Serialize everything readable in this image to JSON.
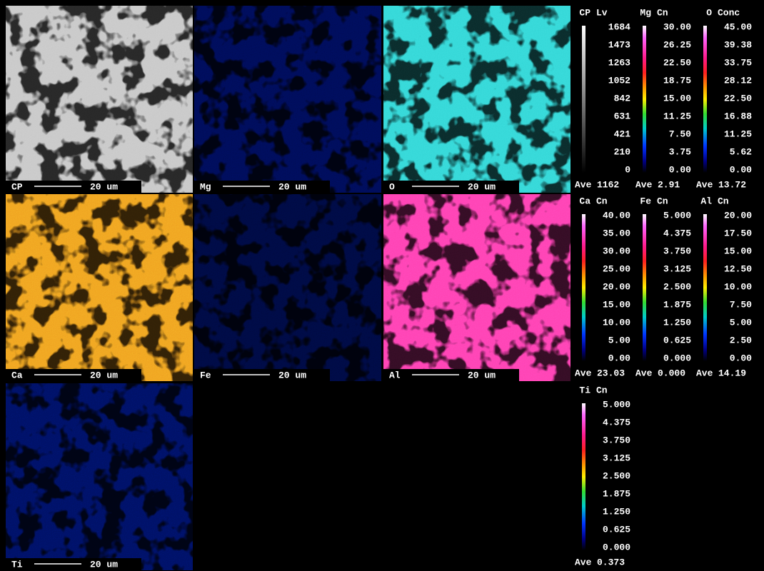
{
  "maps": [
    {
      "element": "CP",
      "scale": "20 um"
    },
    {
      "element": "Mg",
      "scale": "20 um"
    },
    {
      "element": "O",
      "scale": "20 um"
    },
    {
      "element": "Ca",
      "scale": "20 um"
    },
    {
      "element": "Fe",
      "scale": "20 um"
    },
    {
      "element": "Al",
      "scale": "20 um"
    },
    {
      "element": "Ti",
      "scale": "20 um"
    }
  ],
  "legends": [
    {
      "element": "CP",
      "unit": "Lv",
      "ticks": [
        "1684",
        "1473",
        "1263",
        "1052",
        "842",
        "631",
        "421",
        "210",
        "0"
      ],
      "average_label": "Ave",
      "average": "1162"
    },
    {
      "element": "Mg",
      "unit": "Cn",
      "ticks": [
        "30.00",
        "26.25",
        "22.50",
        "18.75",
        "15.00",
        "11.25",
        "7.50",
        "3.75",
        "0.00"
      ],
      "average_label": "Ave",
      "average": "2.91"
    },
    {
      "element": "O",
      "unit": "Conc",
      "ticks": [
        "45.00",
        "39.38",
        "33.75",
        "28.12",
        "22.50",
        "16.88",
        "11.25",
        "5.62",
        "0.00"
      ],
      "average_label": "Ave",
      "average": "13.72"
    },
    {
      "element": "Ca",
      "unit": "Cn",
      "ticks": [
        "40.00",
        "35.00",
        "30.00",
        "25.00",
        "20.00",
        "15.00",
        "10.00",
        "5.00",
        "0.00"
      ],
      "average_label": "Ave",
      "average": "23.03"
    },
    {
      "element": "Fe",
      "unit": "Cn",
      "ticks": [
        "5.000",
        "4.375",
        "3.750",
        "3.125",
        "2.500",
        "1.875",
        "1.250",
        "0.625",
        "0.000"
      ],
      "average_label": "Ave",
      "average": "0.000"
    },
    {
      "element": "Al",
      "unit": "Cn",
      "ticks": [
        "20.00",
        "17.50",
        "15.00",
        "12.50",
        "10.00",
        "7.50",
        "5.00",
        "2.50",
        "0.00"
      ],
      "average_label": "Ave",
      "average": "14.19"
    },
    {
      "element": "Ti",
      "unit": "Cn",
      "ticks": [
        "5.000",
        "4.375",
        "3.750",
        "3.125",
        "2.500",
        "1.875",
        "1.250",
        "0.625",
        "0.000"
      ],
      "average_label": "Ave",
      "average": "0.373"
    }
  ]
}
